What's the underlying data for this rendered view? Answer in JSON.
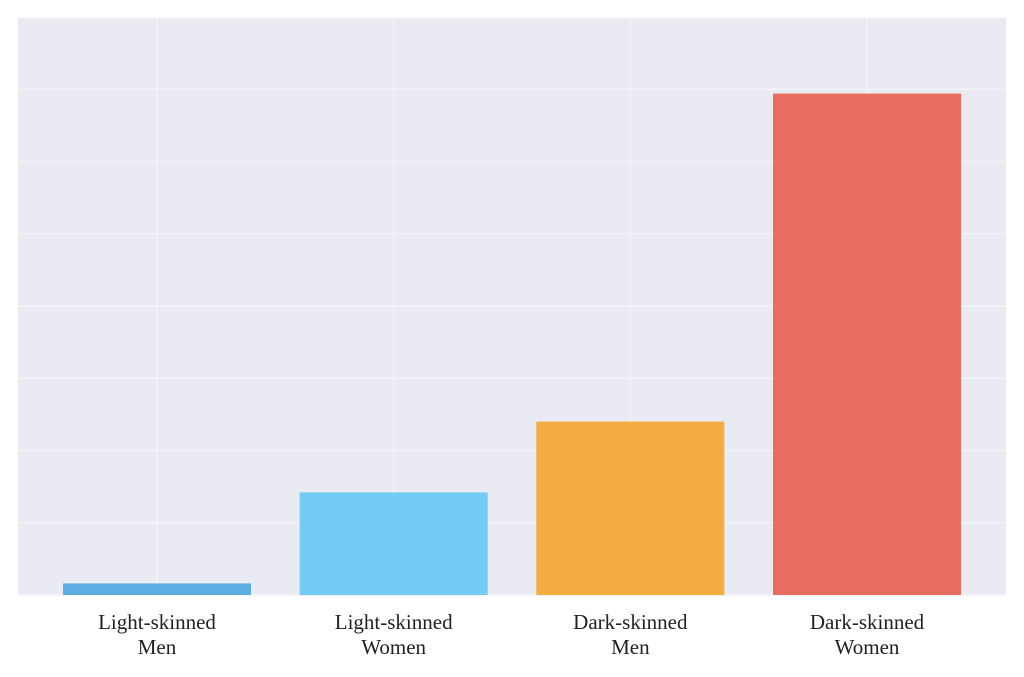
{
  "chart_data": {
    "type": "bar",
    "title": "",
    "xlabel": "",
    "ylabel": "",
    "categories": [
      [
        "Light-skinned",
        "Men"
      ],
      [
        "Light-skinned",
        "Women"
      ],
      [
        "Dark-skinned",
        "Men"
      ],
      [
        "Dark-skinned",
        "Women"
      ]
    ],
    "values": [
      0.8,
      7.1,
      12.0,
      34.7
    ],
    "ylim": [
      0,
      40
    ],
    "y_grid_step": 5,
    "grid": true,
    "legend": "none",
    "colors": [
      "#5DADE2",
      "#72CBF3",
      "#F2AC40",
      "#E96C61"
    ],
    "background": "#EAEAF2",
    "grid_color": "#F6F6FA"
  }
}
